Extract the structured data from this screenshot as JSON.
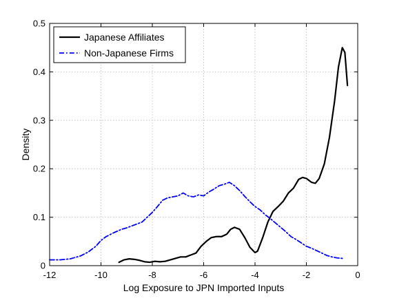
{
  "chart_data": {
    "type": "line",
    "xlabel": "Log Exposure to JPN Imported Inputs",
    "ylabel": "Density",
    "xlim": [
      -12,
      0
    ],
    "ylim": [
      0,
      0.5
    ],
    "xticks": [
      -12,
      -10,
      -8,
      -6,
      -4,
      -2,
      0
    ],
    "yticks": [
      0,
      0.1,
      0.2,
      0.3,
      0.4,
      0.5
    ],
    "xtick_labels": [
      "-12",
      "-10",
      "-8",
      "-6",
      "-4",
      "-2",
      "0"
    ],
    "ytick_labels": [
      "0",
      "0.1",
      "0.2",
      "0.3",
      "0.4",
      "0.5"
    ],
    "grid": true,
    "legend_position": "top-left",
    "series": [
      {
        "name": "Japanese Affiliates",
        "color": "#000000",
        "style": "solid",
        "x": [
          -9.3,
          -9.1,
          -8.9,
          -8.7,
          -8.5,
          -8.3,
          -8.1,
          -7.9,
          -7.7,
          -7.5,
          -7.3,
          -7.1,
          -6.9,
          -6.7,
          -6.5,
          -6.3,
          -6.1,
          -5.9,
          -5.7,
          -5.5,
          -5.3,
          -5.1,
          -4.95,
          -4.8,
          -4.6,
          -4.4,
          -4.2,
          -4.0,
          -3.9,
          -3.7,
          -3.5,
          -3.3,
          -3.1,
          -2.9,
          -2.7,
          -2.5,
          -2.3,
          -2.15,
          -2.0,
          -1.8,
          -1.65,
          -1.5,
          -1.3,
          -1.1,
          -0.9,
          -0.75,
          -0.6,
          -0.5,
          -0.4
        ],
        "y": [
          0.007,
          0.012,
          0.014,
          0.013,
          0.011,
          0.008,
          0.007,
          0.009,
          0.008,
          0.009,
          0.012,
          0.015,
          0.018,
          0.018,
          0.022,
          0.026,
          0.04,
          0.05,
          0.058,
          0.06,
          0.06,
          0.065,
          0.075,
          0.079,
          0.075,
          0.058,
          0.038,
          0.027,
          0.03,
          0.058,
          0.09,
          0.112,
          0.122,
          0.133,
          0.15,
          0.16,
          0.178,
          0.182,
          0.18,
          0.172,
          0.17,
          0.18,
          0.21,
          0.265,
          0.34,
          0.41,
          0.45,
          0.44,
          0.372
        ]
      },
      {
        "name": "Non-Japanese Firms",
        "color": "#0000ff",
        "style": "dashdot",
        "x": [
          -12,
          -11.6,
          -11.2,
          -10.8,
          -10.5,
          -10.2,
          -10.0,
          -9.8,
          -9.5,
          -9.2,
          -9.0,
          -8.7,
          -8.4,
          -8.2,
          -8.0,
          -7.8,
          -7.6,
          -7.4,
          -7.2,
          -7.0,
          -6.8,
          -6.6,
          -6.4,
          -6.2,
          -6.0,
          -5.8,
          -5.6,
          -5.4,
          -5.2,
          -5.0,
          -4.8,
          -4.6,
          -4.4,
          -4.2,
          -4.0,
          -3.8,
          -3.6,
          -3.4,
          -3.2,
          -3.0,
          -2.8,
          -2.6,
          -2.4,
          -2.2,
          -2.0,
          -1.8,
          -1.6,
          -1.4,
          -1.2,
          -1.0,
          -0.8,
          -0.6
        ],
        "y": [
          0.012,
          0.012,
          0.014,
          0.02,
          0.028,
          0.04,
          0.052,
          0.06,
          0.068,
          0.075,
          0.078,
          0.084,
          0.09,
          0.1,
          0.11,
          0.122,
          0.135,
          0.14,
          0.142,
          0.144,
          0.15,
          0.144,
          0.142,
          0.146,
          0.144,
          0.152,
          0.158,
          0.165,
          0.168,
          0.172,
          0.165,
          0.155,
          0.143,
          0.132,
          0.122,
          0.115,
          0.105,
          0.097,
          0.088,
          0.079,
          0.07,
          0.06,
          0.054,
          0.047,
          0.04,
          0.036,
          0.031,
          0.026,
          0.021,
          0.018,
          0.016,
          0.015
        ]
      }
    ]
  }
}
